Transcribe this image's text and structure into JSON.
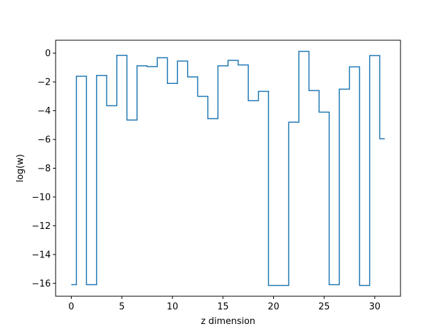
{
  "chart_data": {
    "type": "line",
    "step": "mid",
    "xlabel": "z dimension",
    "ylabel": "log(w)",
    "xlim": [
      -1.55,
      32.55
    ],
    "ylim": [
      -16.9,
      0.9
    ],
    "xticks": [
      0,
      5,
      10,
      15,
      20,
      25,
      30
    ],
    "yticks": [
      0,
      -2,
      -4,
      -6,
      -8,
      -10,
      -12,
      -14,
      -16
    ],
    "ytick_labels": [
      "0",
      "−2",
      "−4",
      "−6",
      "−8",
      "−10",
      "−12",
      "−14",
      "−16"
    ],
    "grid": false,
    "series": [
      {
        "color": "#1f77b4",
        "x": [
          0,
          1,
          2,
          3,
          4,
          5,
          6,
          7,
          8,
          9,
          10,
          11,
          12,
          13,
          14,
          15,
          16,
          17,
          18,
          19,
          20,
          21,
          22,
          23,
          24,
          25,
          26,
          27,
          28,
          29,
          30,
          31
        ],
        "y": [
          -16.1,
          -1.6,
          -16.1,
          -1.55,
          -3.65,
          -0.15,
          -4.65,
          -0.88,
          -0.93,
          -0.32,
          -2.1,
          -0.55,
          -1.65,
          -3.0,
          -4.55,
          -0.88,
          -0.5,
          -0.82,
          -3.3,
          -2.65,
          -16.15,
          -16.15,
          -4.8,
          0.12,
          -2.6,
          -4.1,
          -16.1,
          -2.5,
          -0.95,
          -16.15,
          -0.17,
          -5.95
        ]
      }
    ]
  }
}
